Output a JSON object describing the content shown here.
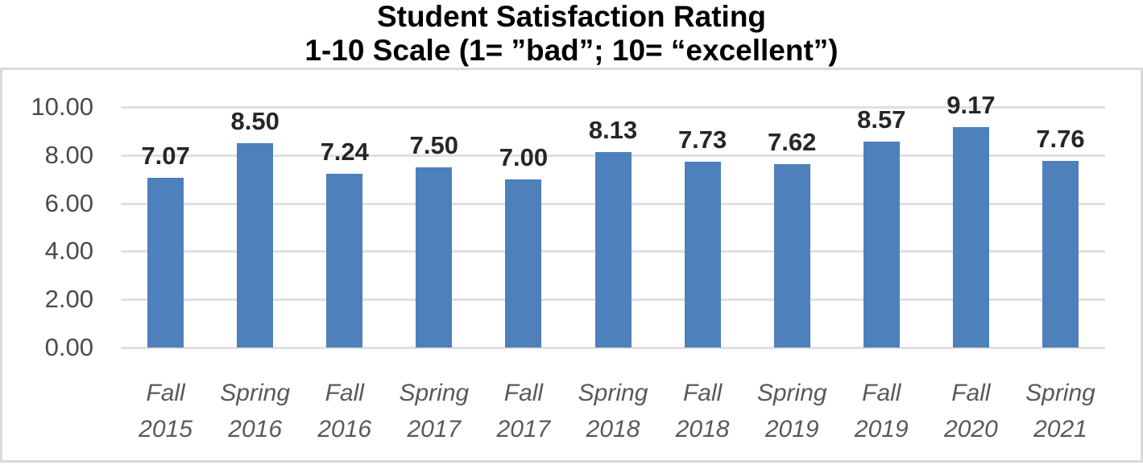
{
  "title": {
    "line1": "Student Satisfaction Rating",
    "line2": "1-10 Scale (1= ”bad”; 10= “excellent”)"
  },
  "chart_data": {
    "type": "bar",
    "title": "Student Satisfaction Rating",
    "subtitle": "1-10 Scale (1= ”bad”; 10= “excellent”)",
    "categories": [
      "Fall 2015",
      "Spring 2016",
      "Fall 2016",
      "Spring 2017",
      "Fall 2017",
      "Spring 2018",
      "Fall 2018",
      "Spring 2019",
      "Fall 2019",
      "Fall 2020",
      "Spring 2021"
    ],
    "category_lines": [
      [
        "Fall",
        "2015"
      ],
      [
        "Spring",
        "2016"
      ],
      [
        "Fall",
        "2016"
      ],
      [
        "Spring",
        "2017"
      ],
      [
        "Fall",
        "2017"
      ],
      [
        "Spring",
        "2018"
      ],
      [
        "Fall",
        "2018"
      ],
      [
        "Spring",
        "2019"
      ],
      [
        "Fall",
        "2019"
      ],
      [
        "Fall",
        "2020"
      ],
      [
        "Spring",
        "2021"
      ]
    ],
    "values": [
      7.07,
      8.5,
      7.24,
      7.5,
      7.0,
      8.13,
      7.73,
      7.62,
      8.57,
      9.17,
      7.76
    ],
    "data_labels": [
      "7.07",
      "8.50",
      "7.24",
      "7.50",
      "7.00",
      "8.13",
      "7.73",
      "7.62",
      "8.57",
      "9.17",
      "7.76"
    ],
    "xlabel": "",
    "ylabel": "",
    "ylim": [
      0,
      10
    ],
    "y_ticks": [
      "10.00",
      "8.00",
      "6.00",
      "4.00",
      "2.00",
      "0.00"
    ],
    "y_tick_values": [
      10,
      8,
      6,
      4,
      2,
      0
    ],
    "grid": true,
    "legend": false,
    "bar_color": "#4e80bc",
    "gridline_color": "#e0e0e0",
    "frame_border_color": "#d9d9d9",
    "y_tick_color": "#4a4a4a",
    "x_label_color": "#595959",
    "data_label_color": "#262626",
    "title_color": "#000000"
  }
}
